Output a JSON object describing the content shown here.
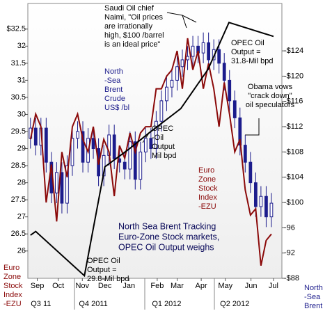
{
  "chart_data": {
    "type": "candlestick",
    "title": [
      "North Sea Brent Tracking",
      "Euro-Zone Stock markets,",
      "OPEC Oil Output weighs"
    ],
    "ylabel": [
      "Euro",
      "Zone",
      "Stock",
      "Index",
      "-EZU"
    ],
    "y2label": [
      "North",
      "-Sea",
      "Brent"
    ],
    "x": [
      0,
      1,
      2,
      3,
      4,
      5,
      6,
      7,
      8,
      9,
      10,
      11,
      12,
      13,
      14,
      15,
      16,
      17,
      18,
      19,
      20,
      21,
      22,
      23,
      24,
      25,
      26,
      27,
      28,
      29,
      30,
      31,
      32,
      33,
      34,
      35,
      36,
      37,
      38,
      39,
      40,
      41,
      42,
      43,
      44,
      45,
      46
    ],
    "open": [
      29.3,
      29.6,
      29.1,
      29.6,
      28.6,
      27.7,
      28.3,
      27.4,
      28.5,
      29.3,
      29.5,
      28.6,
      29.3,
      29.0,
      28.2,
      28.8,
      29.4,
      28.7,
      28.6,
      28.4,
      29.2,
      28.1,
      28.9,
      29.3,
      29.0,
      29.8,
      30.4,
      30.8,
      31.0,
      31.4,
      31.6,
      31.7,
      32.0,
      31.8,
      32.1,
      31.6,
      31.9,
      31.5,
      31.0,
      30.4,
      29.9,
      29.1,
      28.6,
      28.0,
      27.3,
      27.6,
      27.0
    ],
    "high": [
      29.9,
      29.9,
      29.9,
      29.9,
      28.9,
      28.6,
      28.6,
      28.8,
      29.6,
      29.8,
      29.8,
      29.6,
      29.6,
      29.3,
      29.1,
      29.7,
      29.7,
      29.0,
      28.9,
      29.5,
      29.5,
      29.2,
      29.6,
      29.6,
      30.1,
      30.7,
      31.1,
      31.3,
      31.7,
      31.9,
      32.0,
      32.3,
      32.3,
      32.4,
      32.4,
      32.2,
      32.2,
      31.8,
      31.3,
      30.7,
      30.2,
      29.4,
      28.9,
      28.3,
      27.9,
      27.9,
      27.7
    ],
    "low": [
      29.0,
      28.8,
      28.8,
      28.3,
      27.4,
      27.4,
      27.1,
      27.1,
      28.2,
      29.0,
      28.3,
      28.3,
      28.7,
      27.9,
      27.9,
      28.5,
      28.4,
      28.3,
      28.1,
      28.1,
      27.8,
      27.8,
      28.6,
      28.7,
      28.7,
      29.5,
      30.1,
      30.5,
      30.7,
      31.1,
      31.3,
      31.4,
      31.5,
      31.5,
      31.3,
      31.3,
      31.2,
      30.7,
      30.1,
      29.6,
      28.8,
      28.3,
      27.7,
      27.0,
      27.0,
      26.7,
      26.7
    ],
    "close": [
      29.6,
      29.1,
      29.6,
      28.6,
      27.7,
      28.3,
      27.4,
      28.5,
      29.3,
      29.5,
      28.6,
      29.3,
      29.0,
      28.2,
      28.8,
      29.4,
      28.7,
      28.6,
      28.4,
      29.2,
      28.1,
      28.9,
      29.3,
      29.0,
      29.8,
      30.4,
      30.8,
      31.0,
      31.4,
      31.6,
      31.7,
      32.0,
      31.8,
      32.1,
      31.6,
      31.9,
      31.5,
      31.0,
      30.4,
      29.9,
      29.1,
      28.6,
      28.0,
      27.3,
      27.6,
      27.0,
      27.4
    ],
    "up_color": "#ffffff",
    "down_color": "#1c1c8c",
    "series": [
      {
        "color": "#8b0a0a",
        "axis": "y2",
        "x": [
          0,
          1,
          2,
          3,
          4,
          5,
          6,
          7,
          8,
          9,
          10,
          11,
          12,
          13,
          14,
          15,
          16,
          17,
          18,
          19,
          20,
          21,
          22,
          23,
          24,
          25,
          26,
          27,
          28,
          29,
          30,
          31,
          32,
          33,
          34,
          35,
          36,
          37,
          38,
          39,
          40,
          41,
          42,
          43,
          44,
          45,
          46
        ],
        "values": [
          110,
          114,
          112,
          100,
          106,
          97,
          108,
          104,
          112,
          114,
          110,
          108,
          112,
          106,
          110,
          108,
          101,
          109,
          107,
          111,
          108,
          111,
          112,
          112,
          118,
          118,
          120,
          121,
          124,
          118,
          126,
          121,
          124,
          118,
          122,
          118,
          112,
          119,
          114,
          108,
          110,
          102,
          98,
          99,
          90,
          94,
          95
        ]
      },
      {
        "color": "#000000",
        "axis": "y3",
        "x": [
          0,
          1,
          10.3,
          14.2,
          18.8,
          22.7,
          28.7,
          33.9,
          37.9,
          46.4
        ],
        "values": [
          30.12,
          30.15,
          29.8,
          30.66,
          30.8,
          30.93,
          31.12,
          31.43,
          31.8,
          31.69
        ]
      }
    ],
    "xlim": [
      -0.5,
      48
    ],
    "ylim": [
      25.2,
      33.25
    ],
    "yticks": [
      {
        "value": 32.5,
        "label": "$32.5"
      },
      32,
      31.5,
      31,
      30.5,
      30,
      29.5,
      29,
      28.5,
      28,
      27.5,
      27,
      26.5,
      26
    ],
    "y2lim": [
      88,
      131.5
    ],
    "y2ticks": [
      {
        "value": 124,
        "label": "-$124"
      },
      {
        "value": 120,
        "label": "-$120"
      },
      {
        "value": 116,
        "label": "-$116"
      },
      {
        "value": 112,
        "label": "-$112"
      },
      {
        "value": 108,
        "label": "-$108"
      },
      {
        "value": 104,
        "label": "-$104"
      },
      {
        "value": 100,
        "label": "-$100"
      },
      {
        "value": 96,
        "label": "-96"
      },
      {
        "value": 92,
        "label": "-92"
      },
      {
        "value": 88,
        "label": "-$88"
      }
    ],
    "y3lim": [
      29.78,
      31.95
    ],
    "xticks": [
      {
        "value": 1.3,
        "label": "Sep"
      },
      {
        "value": 5.3,
        "label": "Oct"
      },
      {
        "value": 9.9,
        "label": "Nov"
      },
      {
        "value": 14.2,
        "label": "Dec"
      },
      {
        "value": 18.8,
        "label": "Jan"
      },
      {
        "value": 24.2,
        "label": "Feb"
      },
      {
        "value": 28,
        "label": "Mar"
      },
      {
        "value": 32.6,
        "label": "Apr"
      },
      {
        "value": 37.2,
        "label": "May"
      },
      {
        "value": 42.1,
        "label": "Jun"
      },
      {
        "value": 46.4,
        "label": "Jul"
      }
    ],
    "quarters": [
      {
        "value": 2,
        "label": "Q3 11"
      },
      {
        "value": 12,
        "label": "Q4 2011"
      },
      {
        "value": 26,
        "label": "Q1 2012"
      },
      {
        "value": 39,
        "label": "Q2 2012"
      }
    ],
    "annotations": [
      [
        "Saudi Oil chief",
        "Naimi, \"Oil prices",
        "are irrationally",
        "high, $100 /barrel",
        "is an ideal price\""
      ],
      [
        "OPEC Oil",
        "Output =",
        "31.8-Mil bpd"
      ],
      [
        "Obama vows",
        "\"crack down\"",
        "oil speculators"
      ],
      [
        "OPEC",
        "-Oil",
        "Output",
        "Mil bpd"
      ],
      [
        "North",
        "-Sea",
        "Brent",
        "Crude",
        "US$ /bl"
      ],
      [
        "Euro",
        "Zone",
        "Stock",
        "Index",
        "-EZU"
      ],
      [
        "OPEC Oil",
        "Output =",
        "29.8-Mil bpd"
      ]
    ]
  }
}
